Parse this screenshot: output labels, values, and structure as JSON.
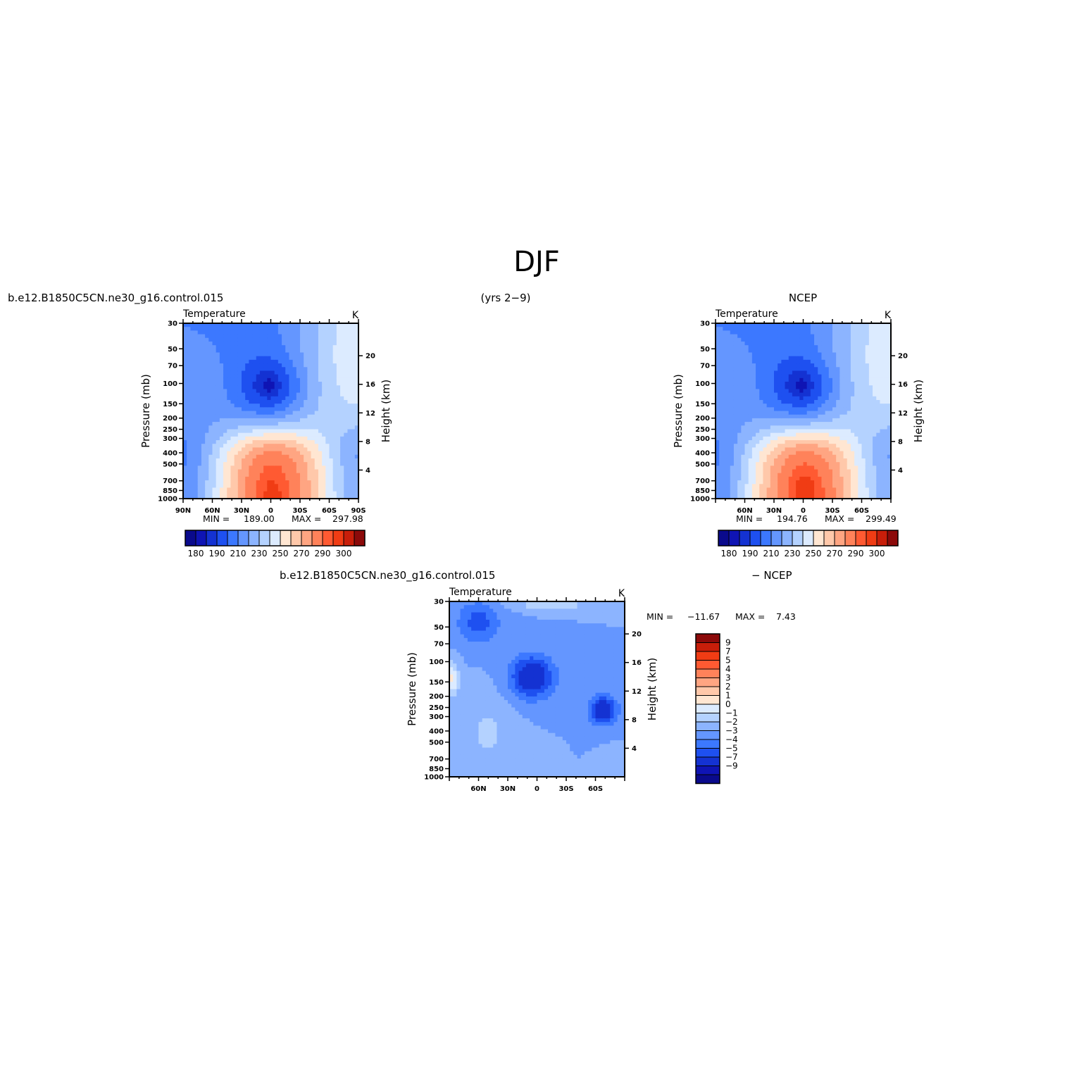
{
  "figure": {
    "title": "DJF",
    "case_name": "b.e12.B1850C5CN.ne30_g16.control.015",
    "years": "(yrs 2−9)",
    "obs_name": "NCEP",
    "diff_suffix": "− NCEP"
  },
  "colors": {
    "temperature_levels": [
      "#0a0a8c",
      "#0f14b4",
      "#1432d2",
      "#1e50f0",
      "#3c78ff",
      "#6496ff",
      "#8cb4ff",
      "#b4d2ff",
      "#dcebff",
      "#ffe6d2",
      "#ffc8aa",
      "#ffa582",
      "#ff825a",
      "#ff5a32",
      "#f03c14",
      "#c81e0a",
      "#8c0a0a"
    ],
    "difference_levels": [
      "#0a0a8c",
      "#0f14b4",
      "#1432d2",
      "#1e50f0",
      "#3c78ff",
      "#6496ff",
      "#8cb4ff",
      "#b4d2ff",
      "#dcebff",
      "#ffe6d2",
      "#ffc8aa",
      "#ffa582",
      "#ff825a",
      "#ff5a32",
      "#f03c14",
      "#c81e0a",
      "#8c0a0a"
    ]
  },
  "chart_data": [
    {
      "type": "heatmap",
      "id": "model",
      "header_left": "b.e12.B1850C5CN.ne30_g16.control.015",
      "field": "Temperature",
      "units": "K",
      "ylabel": "Pressure (mb)",
      "ylabel_right": "Height (km)",
      "lat_ticks": [
        "90N",
        "60N",
        "30N",
        "0",
        "30S",
        "60S",
        "90S"
      ],
      "lat_tick_values": [
        90,
        60,
        30,
        0,
        -30,
        -60,
        -90
      ],
      "pressure_ticks": [
        30,
        50,
        70,
        100,
        150,
        200,
        250,
        300,
        400,
        500,
        700,
        850,
        1000
      ],
      "height_ticks": [
        4,
        8,
        12,
        16,
        20
      ],
      "min_label": "MIN =",
      "min_value": "189.00",
      "max_label": "MAX =",
      "max_value": "297.98",
      "colorbar_orientation": "horizontal",
      "colorbar_labels": [
        "180",
        "190",
        "210",
        "230",
        "250",
        "270",
        "290",
        "300"
      ],
      "contour_levels": [
        180,
        185,
        190,
        200,
        210,
        220,
        230,
        240,
        250,
        260,
        270,
        280,
        290,
        295,
        300,
        305
      ],
      "grid": false
    },
    {
      "type": "heatmap",
      "id": "obs",
      "header_right": "NCEP",
      "field": "Temperature",
      "units": "K",
      "ylabel": "Pressure (mb)",
      "ylabel_right": "Height (km)",
      "lat_ticks": [
        "60N",
        "30N",
        "0",
        "30S",
        "60S"
      ],
      "lat_tick_values": [
        60,
        30,
        0,
        -30,
        -60
      ],
      "pressure_ticks": [
        30,
        50,
        70,
        100,
        150,
        200,
        250,
        300,
        400,
        500,
        700,
        850,
        1000
      ],
      "height_ticks": [
        4,
        8,
        12,
        16,
        20
      ],
      "min_label": "MIN =",
      "min_value": "194.76",
      "max_label": "MAX =",
      "max_value": "299.49",
      "colorbar_orientation": "horizontal",
      "colorbar_labels": [
        "180",
        "190",
        "210",
        "230",
        "250",
        "270",
        "290",
        "300"
      ],
      "contour_levels": [
        180,
        185,
        190,
        200,
        210,
        220,
        230,
        240,
        250,
        260,
        270,
        280,
        290,
        295,
        300,
        305
      ],
      "grid": false
    },
    {
      "type": "heatmap",
      "id": "diff",
      "header_left": "b.e12.B1850C5CN.ne30_g16.control.015",
      "header_right": "− NCEP",
      "field": "Temperature",
      "units": "K",
      "ylabel": "Pressure (mb)",
      "ylabel_right": "Height (km)",
      "lat_ticks": [
        "60N",
        "30N",
        "0",
        "30S",
        "60S"
      ],
      "lat_tick_values": [
        60,
        30,
        0,
        -30,
        -60
      ],
      "pressure_ticks": [
        30,
        50,
        70,
        100,
        150,
        200,
        250,
        300,
        400,
        500,
        700,
        850,
        1000
      ],
      "height_ticks": [
        4,
        8,
        12,
        16,
        20
      ],
      "min_label": "MIN =",
      "min_value": "−11.67",
      "max_label": "MAX =",
      "max_value": "7.43",
      "colorbar_orientation": "vertical",
      "colorbar_labels": [
        "9",
        "7",
        "5",
        "4",
        "3",
        "2",
        "1",
        "0",
        "−1",
        "−2",
        "−3",
        "−4",
        "−5",
        "−7",
        "−9"
      ],
      "contour_levels": [
        -9,
        -7,
        -5,
        -4,
        -3,
        -2,
        -1,
        0,
        1,
        2,
        3,
        4,
        5,
        7,
        9
      ],
      "grid": false
    }
  ]
}
